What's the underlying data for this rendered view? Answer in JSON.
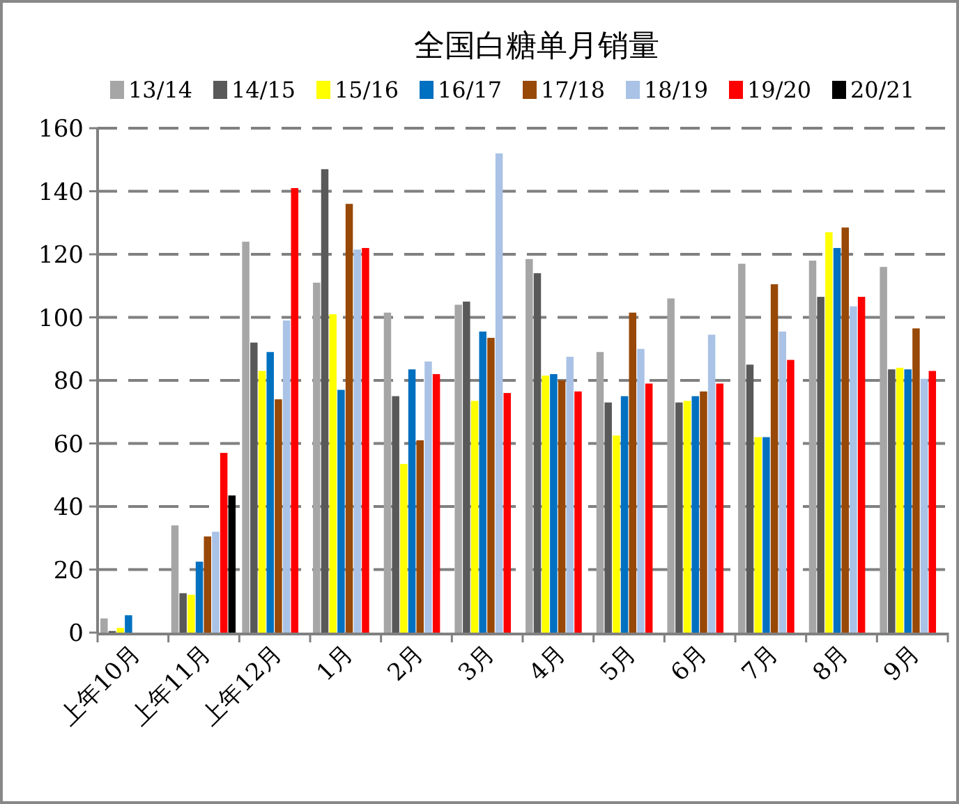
{
  "chart_data": {
    "type": "bar",
    "title": "全国白糖单月销量",
    "categories": [
      "上年10月",
      "上年11月",
      "上年12月",
      "1月",
      "2月",
      "3月",
      "4月",
      "5月",
      "6月",
      "7月",
      "8月",
      "9月"
    ],
    "series": [
      {
        "name": "13/14",
        "color": "#a6a6a6",
        "values": [
          4.5,
          34,
          124,
          111,
          101.5,
          104,
          118.5,
          89,
          106,
          117,
          118,
          116
        ]
      },
      {
        "name": "14/15",
        "color": "#595959",
        "values": [
          0.5,
          12.5,
          92,
          147,
          75,
          105,
          114,
          73,
          73,
          85,
          106.5,
          83.5
        ]
      },
      {
        "name": "15/16",
        "color": "#ffff00",
        "values": [
          1.5,
          12,
          83,
          101,
          53.5,
          73.5,
          81.5,
          62.5,
          73.5,
          62,
          127,
          84
        ]
      },
      {
        "name": "16/17",
        "color": "#0070c0",
        "values": [
          5.5,
          22.5,
          89,
          77,
          83.5,
          95.5,
          82,
          75,
          75,
          62,
          122,
          83.5
        ]
      },
      {
        "name": "17/18",
        "color": "#984807",
        "values": [
          null,
          30.5,
          74,
          136,
          61,
          93.5,
          80,
          101.5,
          76.5,
          110.5,
          128.5,
          96.5
        ]
      },
      {
        "name": "18/19",
        "color": "#a9c2e6",
        "values": [
          null,
          32,
          99,
          121.5,
          86,
          152,
          87.5,
          90,
          94.5,
          95.5,
          103.5,
          80.5
        ]
      },
      {
        "name": "19/20",
        "color": "#ff0000",
        "values": [
          null,
          57,
          141,
          122,
          82,
          76,
          76.5,
          79,
          79,
          86.5,
          106.5,
          83
        ]
      },
      {
        "name": "20/21",
        "color": "#000000",
        "values": [
          null,
          43.5,
          null,
          null,
          null,
          null,
          null,
          null,
          null,
          null,
          null,
          null
        ]
      }
    ],
    "ylim": [
      0,
      160
    ],
    "yticks": [
      0,
      20,
      40,
      60,
      80,
      100,
      120,
      140,
      160
    ],
    "grid": "y",
    "legend": "top"
  }
}
